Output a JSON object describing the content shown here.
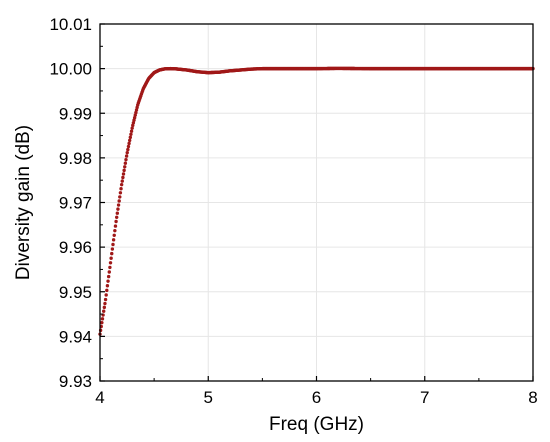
{
  "chart_data": {
    "type": "scatter",
    "title": "",
    "xlabel": "Freq (GHz)",
    "ylabel": "Diversity gain (dB)",
    "xlim": [
      4,
      8
    ],
    "ylim": [
      9.93,
      10.01
    ],
    "xticks": [
      "4",
      "5",
      "6",
      "7",
      "8"
    ],
    "yticks": [
      "9.93",
      "9.94",
      "9.95",
      "9.96",
      "9.97",
      "9.98",
      "9.99",
      "10.00",
      "10.01"
    ],
    "grid": true,
    "series": [
      {
        "color": "#a01818",
        "x": [
          4.0,
          4.05,
          4.1,
          4.15,
          4.2,
          4.25,
          4.3,
          4.35,
          4.4,
          4.45,
          4.5,
          4.55,
          4.6,
          4.65,
          4.7,
          4.8,
          4.9,
          5.0,
          5.1,
          5.2,
          5.3,
          5.4,
          5.5,
          5.7,
          6.0,
          6.2,
          6.5,
          7.0,
          7.5,
          8.0
        ],
        "y": [
          9.9405,
          9.948,
          9.957,
          9.966,
          9.974,
          9.981,
          9.987,
          9.992,
          9.9955,
          9.9978,
          9.9991,
          9.9997,
          9.99995,
          10.0,
          9.99995,
          9.9997,
          9.9993,
          9.9991,
          9.9992,
          9.9995,
          9.9997,
          9.9999,
          10.0,
          10.0,
          10.0,
          10.00005,
          10.0,
          10.0,
          10.0,
          10.0
        ]
      }
    ]
  }
}
